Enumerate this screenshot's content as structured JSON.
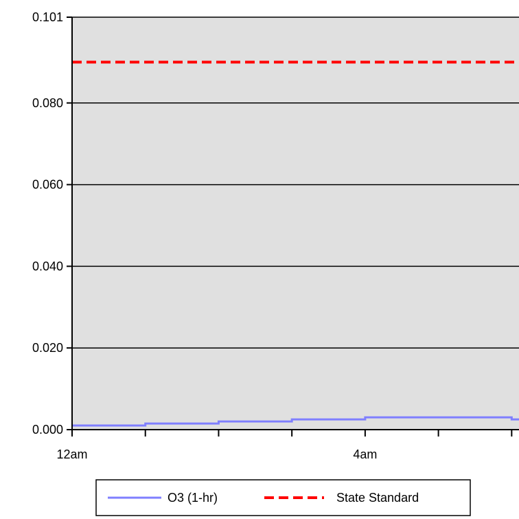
{
  "chart_data": {
    "type": "line",
    "title": "",
    "xlabel": "",
    "ylabel": "",
    "ylim": [
      0.0,
      0.101
    ],
    "y_tick_labels": [
      "0.000",
      "0.020",
      "0.040",
      "0.060",
      "0.080",
      "0.101"
    ],
    "y_tick_values": [
      0.0,
      0.02,
      0.04,
      0.06,
      0.08,
      0.101
    ],
    "xlim": [
      0,
      6.1
    ],
    "x_tick_values": [
      0,
      1,
      2,
      3,
      4,
      5,
      6
    ],
    "x_tick_labels": [
      {
        "hour": 0,
        "label": "12am"
      },
      {
        "hour": 4,
        "label": "4am"
      }
    ],
    "grid": "horizontal",
    "background": "#e0e0e0",
    "legend_position": "bottom",
    "series": [
      {
        "name": "O3 (1-hr)",
        "color": "#7f7fff",
        "style": "step",
        "x": [
          0,
          1,
          2,
          3,
          4,
          5,
          6,
          7
        ],
        "values": [
          0.001,
          0.0015,
          0.002,
          0.0025,
          0.003,
          0.003,
          0.0025,
          0.002
        ]
      },
      {
        "name": "State Standard",
        "color": "#ff0000",
        "style": "dashed",
        "x": [
          0,
          6.1
        ],
        "values": [
          0.09,
          0.09
        ]
      }
    ]
  }
}
